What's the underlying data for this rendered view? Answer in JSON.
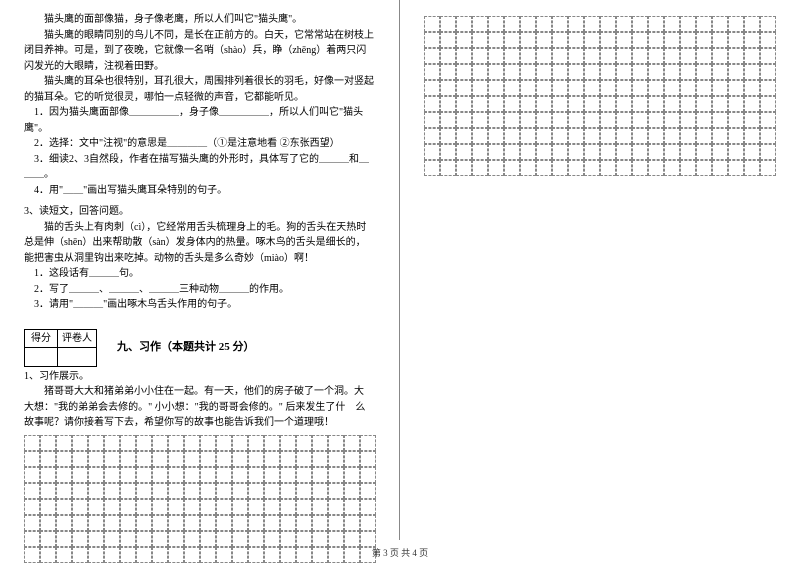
{
  "left": {
    "passage1": [
      "猫头鹰的面部像猫，身子像老鹰，所以人们叫它\"猫头鹰\"。",
      "猫头鹰的眼睛同别的鸟儿不同，是长在正前方的。白天，它常常站在树枝上闭目养神。可是，到了夜晚，它就像一名哨（shào）兵，睁（zhēng）着两只闪闪发光的大眼睛，注视着田野。",
      "猫头鹰的耳朵也很特别，耳孔很大，周围排列着很长的羽毛，好像一对竖起的猫耳朵。它的听觉很灵，哪怕一点轻微的声音，它都能听见。"
    ],
    "q1_items": [
      "1．因为猫头鹰面部像＿＿＿＿＿，身子像＿＿＿＿＿，所以人们叫它\"猫头鹰\"。",
      "2．选择：文中\"注视\"的意思是＿＿＿＿（①是注意地看 ②东张西望）",
      "3．细读2、3自然段，作者在描写猫头鹰的外形时，具体写了它的＿＿＿和＿＿＿。",
      "4．用\"＿＿\"画出写猫头鹰耳朵特别的句子。"
    ],
    "q3_title": "3、读短文，回答问题。",
    "passage2": [
      "猫的舌头上有肉刺（cì），它经常用舌头梳理身上的毛。狗的舌头在天热时总是伸（shēn）出来帮助散（sàn）发身体内的热量。啄木鸟的舌头是细长的，",
      "能把害虫从洞里钩出来吃掉。动物的舌头是多么奇妙（miào）啊！"
    ],
    "q3_items": [
      "1．这段话有＿＿＿句。",
      "2．写了＿＿＿、＿＿＿、＿＿＿三种动物＿＿＿的作用。",
      "3．请用\"＿＿＿\"画出啄木鸟舌头作用的句子。"
    ],
    "score_headers": [
      "得分",
      "评卷人"
    ],
    "section_title": "九、习作（本题共计 25 分）",
    "xz_title": "1、习作展示。",
    "xz_body": "猪哥哥大大和猪弟弟小小住在一起。有一天，他们的房子破了一个洞。大　大想：\"我的弟弟会去修的。\" 小小想：\"我的哥哥会修的。\" 后来发生了什　么故事呢？请你接着写下去，希望你写的故事也能告诉我们一个道理哦！",
    "grid_left": {
      "cols": 22,
      "rows": 8,
      "cell": 16
    }
  },
  "right": {
    "grid": {
      "cols": 22,
      "rows": 10,
      "cell": 16
    }
  },
  "footer": "第 3 页 共 4 页"
}
